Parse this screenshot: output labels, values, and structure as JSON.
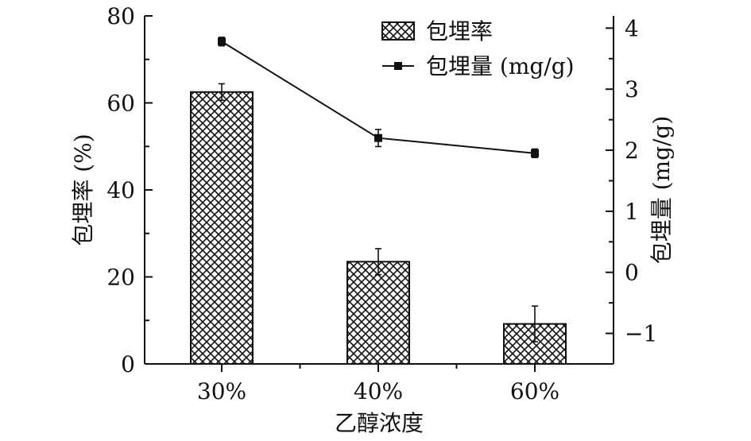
{
  "chart_data": {
    "type": "bar",
    "categories": [
      "30%",
      "40%",
      "60%"
    ],
    "xlabel": "乙醇浓度",
    "ylabel_left": "包埋率 (%)",
    "ylabel_right": "包埋量 (mg/g)",
    "left_axis": {
      "range": [
        0,
        80
      ],
      "ticks": [
        0,
        20,
        40,
        60,
        80
      ],
      "tick_labels": [
        "0",
        "20",
        "40",
        "60",
        "80"
      ]
    },
    "right_axis": {
      "range": [
        -1.5,
        4.2
      ],
      "ticks": [
        -1,
        0,
        1,
        2,
        3,
        4
      ],
      "tick_labels": [
        "−1",
        "0",
        "1",
        "2",
        "3",
        "4"
      ]
    },
    "series": [
      {
        "name": "包埋率",
        "type": "bar",
        "axis": "left",
        "pattern": "crosshatch",
        "values": [
          62.5,
          23.5,
          9.2
        ],
        "errors": [
          1.9,
          3.0,
          4.1
        ]
      },
      {
        "name": "包埋量 (mg/g)",
        "type": "line",
        "axis": "right",
        "marker": "square",
        "values": [
          3.78,
          2.2,
          1.95
        ],
        "errors": [
          0.07,
          0.14,
          0.07
        ]
      }
    ],
    "legend": {
      "position": "top-right"
    },
    "grid": false
  }
}
